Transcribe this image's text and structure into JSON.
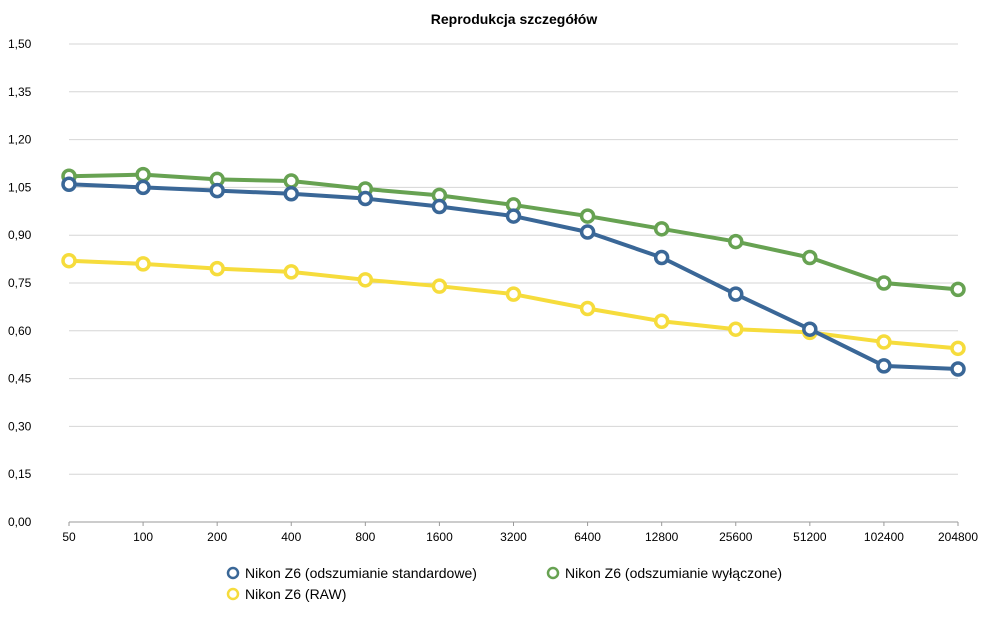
{
  "chart_data": {
    "type": "line",
    "title": "Reprodukcja szczegółów",
    "xlabel": "",
    "ylabel": "",
    "categories": [
      "50",
      "100",
      "200",
      "400",
      "800",
      "1600",
      "3200",
      "6400",
      "12800",
      "25600",
      "51200",
      "102400",
      "204800"
    ],
    "y_ticks": [
      "0,00",
      "0,15",
      "0,30",
      "0,45",
      "0,60",
      "0,75",
      "0,90",
      "1,05",
      "1,20",
      "1,35",
      "1,50"
    ],
    "ylim": [
      0,
      1.5
    ],
    "grid": true,
    "legend_position": "bottom",
    "series": [
      {
        "name": "Nikon Z6 (odszumianie standardowe)",
        "color": "#3a6797",
        "values": [
          1.06,
          1.05,
          1.04,
          1.03,
          1.015,
          0.99,
          0.96,
          0.91,
          0.83,
          0.715,
          0.605,
          0.49,
          0.48
        ]
      },
      {
        "name": "Nikon Z6 (odszumianie wyłączone)",
        "color": "#67a252",
        "values": [
          1.085,
          1.09,
          1.075,
          1.07,
          1.045,
          1.025,
          0.995,
          0.96,
          0.92,
          0.88,
          0.83,
          0.75,
          0.73
        ]
      },
      {
        "name": "Nikon Z6 (RAW)",
        "color": "#f6dc3c",
        "values": [
          0.82,
          0.81,
          0.795,
          0.785,
          0.76,
          0.74,
          0.715,
          0.67,
          0.63,
          0.605,
          0.595,
          0.565,
          0.545
        ]
      }
    ]
  }
}
